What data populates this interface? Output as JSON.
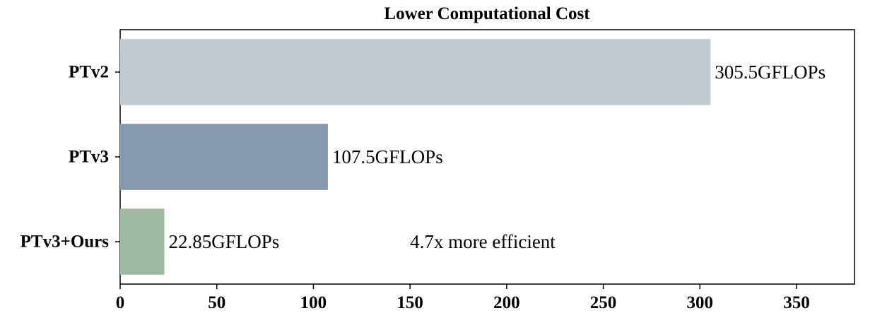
{
  "chart_data": {
    "type": "bar",
    "orientation": "horizontal",
    "title": "Lower Computational Cost",
    "categories": [
      "PTv2",
      "PTv3",
      "PTv3+Ours"
    ],
    "values": [
      305.5,
      107.5,
      22.85
    ],
    "data_labels": [
      "305.5GFLOPs",
      "107.5GFLOPs",
      "22.85GFLOPs"
    ],
    "colors": [
      "#c2c9d1",
      "#8798b0",
      "#a1b8a3"
    ],
    "xlim": [
      0,
      380
    ],
    "xticks": [
      0,
      50,
      100,
      150,
      200,
      250,
      300,
      350
    ],
    "xlabel": "",
    "ylabel": "",
    "grid": false,
    "annotation": {
      "text": "4.7x more efficient",
      "x": 150,
      "category": "PTv3+Ours"
    }
  }
}
